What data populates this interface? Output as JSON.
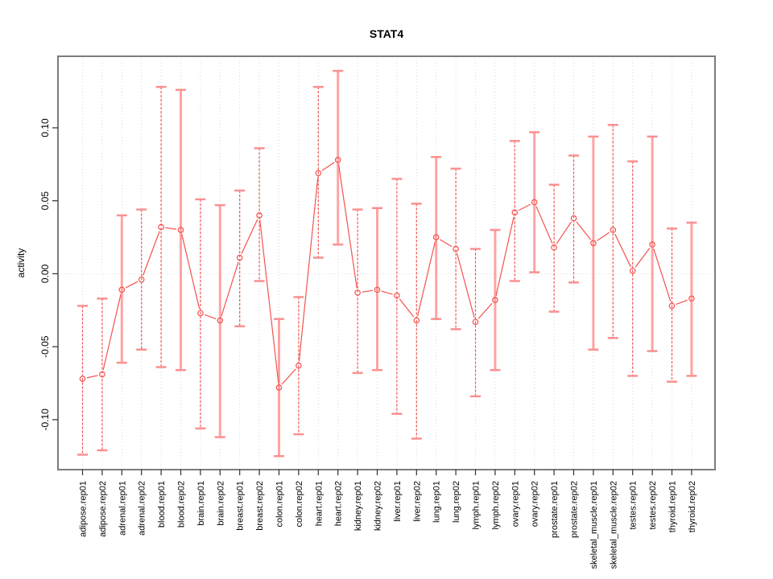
{
  "chart_data": {
    "type": "line",
    "subtype": "points-with-error-bars",
    "title": "STAT4",
    "xlabel": "",
    "ylabel": "activity",
    "ylim": [
      -0.134,
      0.149
    ],
    "yticks": [
      0.1,
      0.05,
      0.0,
      -0.05,
      -0.1
    ],
    "ytick_labels": [
      "0.10",
      "0.05",
      "0.00",
      "-0.05",
      "-0.10"
    ],
    "grid": "vertical dotted gridline at every category; horizontal dotted line at y=0 only",
    "legend": "none",
    "categories": [
      "adipose.rep01",
      "adipose.rep02",
      "adrenal.rep01",
      "adrenal.rep02",
      "blood.rep01",
      "blood.rep02",
      "brain.rep01",
      "brain.rep02",
      "breast.rep01",
      "breast.rep02",
      "colon.rep01",
      "colon.rep02",
      "heart.rep01",
      "heart.rep02",
      "kidney.rep01",
      "kidney.rep02",
      "liver.rep01",
      "liver.rep02",
      "lung.rep01",
      "lung.rep02",
      "lymph.rep01",
      "lymph.rep02",
      "ovary.rep01",
      "ovary.rep02",
      "prostate.rep01",
      "prostate.rep02",
      "skeletal_muscle.rep01",
      "skeletal_muscle.rep02",
      "testes.rep01",
      "testes.rep02",
      "thyroid.rep01",
      "thyroid.rep02"
    ],
    "series": [
      {
        "name": "activity",
        "marker": "open-circle",
        "values": [
          -0.072,
          -0.069,
          -0.011,
          -0.004,
          0.032,
          0.03,
          -0.027,
          -0.032,
          0.011,
          0.04,
          -0.078,
          -0.063,
          0.069,
          0.078,
          -0.013,
          -0.011,
          -0.015,
          -0.032,
          0.025,
          0.017,
          -0.033,
          -0.018,
          0.042,
          0.049,
          0.018,
          0.038,
          0.021,
          0.03,
          0.002,
          0.02,
          -0.022,
          -0.017
        ],
        "err_high": [
          -0.022,
          -0.017,
          0.04,
          0.044,
          0.128,
          0.126,
          0.051,
          0.047,
          0.057,
          0.086,
          -0.031,
          -0.016,
          0.128,
          0.139,
          0.044,
          0.045,
          0.065,
          0.048,
          0.08,
          0.072,
          0.017,
          0.03,
          0.091,
          0.097,
          0.061,
          0.081,
          0.094,
          0.102,
          0.077,
          0.094,
          0.031,
          0.035
        ],
        "err_low": [
          -0.124,
          -0.121,
          -0.061,
          -0.052,
          -0.064,
          -0.066,
          -0.106,
          -0.112,
          -0.036,
          -0.005,
          -0.125,
          -0.11,
          0.011,
          0.02,
          -0.068,
          -0.066,
          -0.096,
          -0.113,
          -0.031,
          -0.038,
          -0.084,
          -0.066,
          -0.005,
          0.001,
          -0.026,
          -0.006,
          -0.052,
          -0.044,
          -0.07,
          -0.053,
          -0.074,
          -0.07
        ],
        "stem_styles": [
          "dashed",
          "dashed",
          "solid",
          "dashed",
          "dashed",
          "solid",
          "dashed",
          "solid",
          "dashed",
          "dashed",
          "solid",
          "dashed",
          "dashed",
          "solid",
          "dashed",
          "solid",
          "dashed",
          "dashed",
          "solid",
          "dashed",
          "dashed",
          "solid",
          "dashed",
          "solid",
          "dashed",
          "dashed",
          "solid",
          "dashed",
          "dashed",
          "solid",
          "dashed",
          "solid"
        ]
      }
    ],
    "colors": {
      "series": "#f4524f",
      "stem_solid": "#ffa3a3",
      "cap": "#fb9090",
      "grid": "#d9d9d9",
      "box": "#7d7d7d",
      "tick": "#2e2e2e",
      "text": "#000000"
    }
  }
}
